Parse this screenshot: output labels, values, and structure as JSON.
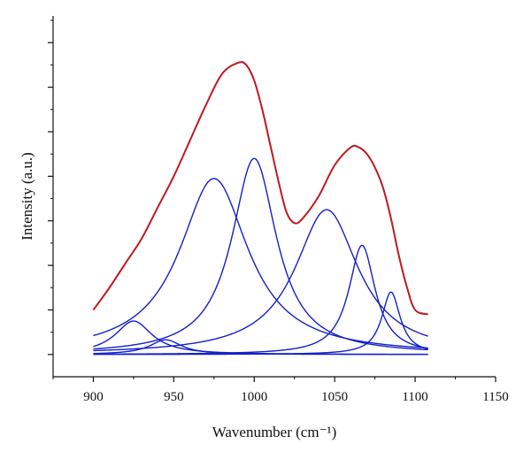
{
  "chart_data": {
    "type": "line",
    "title": "",
    "xlabel": "Wavenumber (cm⁻¹)",
    "ylabel": "Intensity (a.u.)",
    "xlim": [
      875,
      1150
    ],
    "x_ticks": [
      "900",
      "950",
      "1000",
      "1050",
      "1100",
      "1150"
    ],
    "ylim": [
      -0.5,
      7.6
    ],
    "y_ticks_labeled": false,
    "y_tick_count_major": 8,
    "grid": false,
    "legend": "none",
    "baseline": 0,
    "colors": {
      "envelope": "#c0181f",
      "components": "#1420c8"
    },
    "envelope": {
      "x": [
        900,
        910,
        920,
        930,
        940,
        950,
        960,
        970,
        980,
        990,
        995,
        1000,
        1005,
        1010,
        1015,
        1020,
        1025,
        1030,
        1040,
        1050,
        1060,
        1065,
        1070,
        1075,
        1080,
        1085,
        1090,
        1095,
        1100,
        1108
      ],
      "y": [
        1.0,
        1.5,
        2.05,
        2.6,
        3.3,
        4.0,
        4.8,
        5.6,
        6.3,
        6.55,
        6.5,
        6.15,
        5.5,
        4.7,
        3.9,
        3.2,
        2.95,
        3.05,
        3.55,
        4.25,
        4.65,
        4.65,
        4.5,
        4.2,
        3.75,
        3.05,
        2.2,
        1.5,
        1.0,
        0.9
      ]
    },
    "components": [
      {
        "center": 925,
        "height": 0.75,
        "hwhm": 14
      },
      {
        "center": 945,
        "height": 0.33,
        "hwhm": 12
      },
      {
        "center": 975,
        "height": 3.95,
        "hwhm": 26
      },
      {
        "center": 1000,
        "height": 4.4,
        "hwhm": 17
      },
      {
        "center": 1045,
        "height": 3.25,
        "hwhm": 24
      },
      {
        "center": 1067,
        "height": 2.45,
        "hwhm": 10
      },
      {
        "center": 1085,
        "height": 1.4,
        "hwhm": 7
      }
    ],
    "component_x_range": [
      900,
      1108
    ]
  }
}
